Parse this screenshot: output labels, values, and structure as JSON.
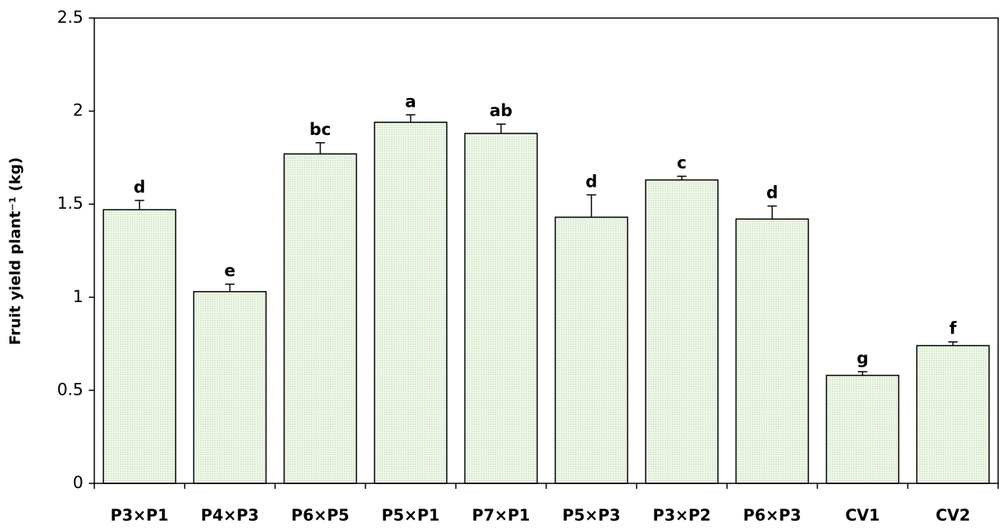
{
  "chart_data": {
    "type": "bar",
    "y_label": "Fruit yield plant⁻¹ (kg)",
    "categories": [
      "P3×P1",
      "P4×P3",
      "P6×P5",
      "P5×P1",
      "P7×P1",
      "P5×P3",
      "P3×P2",
      "P6×P3",
      "CV1",
      "CV2"
    ],
    "values": [
      1.47,
      1.03,
      1.77,
      1.94,
      1.88,
      1.43,
      1.63,
      1.42,
      0.58,
      0.74
    ],
    "errors": [
      0.05,
      0.04,
      0.06,
      0.04,
      0.05,
      0.12,
      0.02,
      0.07,
      0.02,
      0.02
    ],
    "annotations": [
      "d",
      "e",
      "bc",
      "a",
      "ab",
      "d",
      "c",
      "d",
      "g",
      "f"
    ],
    "color": "#e2efd6",
    "ylim": [
      0,
      2.5
    ],
    "yticks": [
      0,
      0.5,
      1,
      1.5,
      2,
      2.5
    ],
    "grid": false
  }
}
